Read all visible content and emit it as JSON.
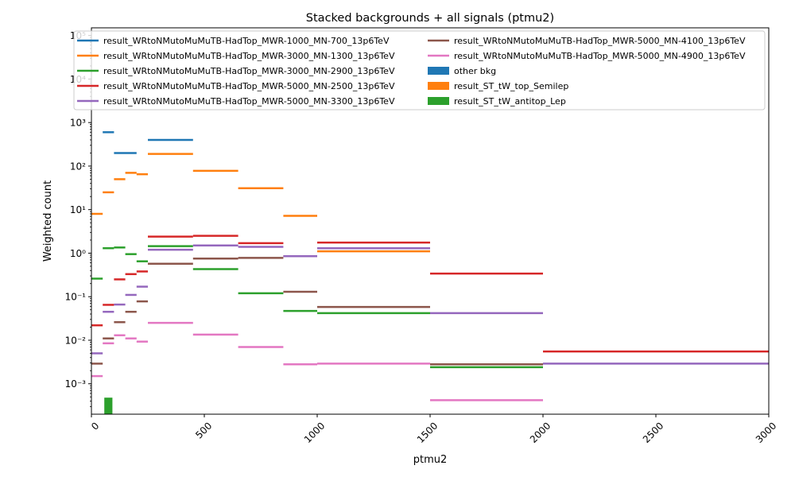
{
  "chart_data": {
    "type": "line",
    "title": "Stacked backgrounds + all signals (ptmu2)",
    "xlabel": "ptmu2",
    "ylabel": "Weighted count",
    "xlim": [
      0,
      3000
    ],
    "ylim": [
      0.0002,
      150000
    ],
    "yscale": "log",
    "grid": false,
    "legend_position": "top",
    "x_ticks": [
      0,
      500,
      1000,
      1500,
      2000,
      2500,
      3000
    ],
    "x_tick_labels": [
      "0",
      "500",
      "1000",
      "1500",
      "2000",
      "2500",
      "3000"
    ],
    "y_ticks": [
      0.001,
      0.01,
      0.1,
      1,
      10,
      100,
      1000,
      10000,
      100000
    ],
    "y_tick_labels": [
      "10⁻³",
      "10⁻²",
      "10⁻¹",
      "10⁰",
      "10¹",
      "10²",
      "10³",
      "10⁴",
      "10⁵"
    ],
    "series": [
      {
        "name": "result_WRtoNMutoMuMuTB-HadTop_MWR-1000_MN-700_13p6TeV",
        "kind": "step",
        "color": "#1f77b4",
        "bins": [
          [
            50,
            100,
            600
          ],
          [
            100,
            200,
            200
          ],
          [
            250,
            450,
            400
          ]
        ]
      },
      {
        "name": "result_WRtoNMutoMuMuTB-HadTop_MWR-3000_MN-1300_13p6TeV",
        "kind": "step",
        "color": "#ff7f0e",
        "bins": [
          [
            0,
            50,
            8
          ],
          [
            50,
            100,
            25
          ],
          [
            100,
            150,
            50
          ],
          [
            150,
            200,
            70
          ],
          [
            200,
            250,
            65
          ],
          [
            250,
            450,
            190
          ],
          [
            450,
            650,
            78
          ],
          [
            650,
            850,
            31
          ],
          [
            850,
            1000,
            7.2
          ],
          [
            1000,
            1500,
            1.1
          ]
        ]
      },
      {
        "name": "result_WRtoNMutoMuMuTB-HadTop_MWR-3000_MN-2900_13p6TeV",
        "kind": "step",
        "color": "#2ca02c",
        "bins": [
          [
            0,
            50,
            0.26
          ],
          [
            50,
            100,
            1.3
          ],
          [
            100,
            150,
            1.35
          ],
          [
            150,
            200,
            0.95
          ],
          [
            200,
            250,
            0.65
          ],
          [
            250,
            450,
            1.45
          ],
          [
            450,
            650,
            0.43
          ],
          [
            650,
            850,
            0.12
          ],
          [
            850,
            1000,
            0.047
          ],
          [
            1000,
            1500,
            0.042
          ],
          [
            1500,
            2000,
            0.0024
          ]
        ]
      },
      {
        "name": "result_WRtoNMutoMuMuTB-HadTop_MWR-5000_MN-2500_13p6TeV",
        "kind": "step",
        "color": "#d62728",
        "bins": [
          [
            0,
            50,
            0.022
          ],
          [
            50,
            100,
            0.065
          ],
          [
            100,
            150,
            0.25
          ],
          [
            150,
            200,
            0.33
          ],
          [
            200,
            250,
            0.38
          ],
          [
            250,
            450,
            2.4
          ],
          [
            450,
            650,
            2.5
          ],
          [
            650,
            850,
            1.7
          ],
          [
            850,
            1000,
            0.85
          ],
          [
            1000,
            1500,
            1.75
          ],
          [
            1500,
            2000,
            0.34
          ],
          [
            2000,
            3000,
            0.0055
          ]
        ]
      },
      {
        "name": "result_WRtoNMutoMuMuTB-HadTop_MWR-5000_MN-3300_13p6TeV",
        "kind": "step",
        "color": "#9467bd",
        "bins": [
          [
            0,
            50,
            0.005
          ],
          [
            50,
            100,
            0.045
          ],
          [
            100,
            150,
            0.066
          ],
          [
            150,
            200,
            0.11
          ],
          [
            200,
            250,
            0.17
          ],
          [
            250,
            450,
            1.2
          ],
          [
            450,
            650,
            1.5
          ],
          [
            650,
            850,
            1.4
          ],
          [
            850,
            1000,
            0.85
          ],
          [
            1000,
            1500,
            1.3
          ],
          [
            1500,
            2000,
            0.042
          ],
          [
            2000,
            3000,
            0.0029
          ]
        ]
      },
      {
        "name": "result_WRtoNMutoMuMuTB-HadTop_MWR-5000_MN-4100_13p6TeV",
        "kind": "step",
        "color": "#8c564b",
        "bins": [
          [
            0,
            50,
            0.0029
          ],
          [
            50,
            100,
            0.011
          ],
          [
            100,
            150,
            0.026
          ],
          [
            150,
            200,
            0.045
          ],
          [
            200,
            250,
            0.078
          ],
          [
            250,
            450,
            0.57
          ],
          [
            450,
            650,
            0.75
          ],
          [
            650,
            850,
            0.78
          ],
          [
            850,
            1000,
            0.13
          ],
          [
            1000,
            1500,
            0.058
          ],
          [
            1500,
            2000,
            0.0028
          ]
        ]
      },
      {
        "name": "result_WRtoNMutoMuMuTB-HadTop_MWR-5000_MN-4900_13p6TeV",
        "kind": "step",
        "color": "#e377c2",
        "bins": [
          [
            0,
            50,
            0.0015
          ],
          [
            50,
            100,
            0.0085
          ],
          [
            100,
            150,
            0.013
          ],
          [
            150,
            200,
            0.011
          ],
          [
            200,
            250,
            0.0093
          ],
          [
            250,
            450,
            0.025
          ],
          [
            450,
            650,
            0.0135
          ],
          [
            650,
            850,
            0.007
          ],
          [
            850,
            1000,
            0.0028
          ],
          [
            1000,
            1500,
            0.0029
          ],
          [
            1500,
            2000,
            0.00042
          ]
        ]
      },
      {
        "name": "other bkg",
        "kind": "bar",
        "color": "#1f77b4",
        "bins": []
      },
      {
        "name": "result_ST_tW_top_Semilep",
        "kind": "bar",
        "color": "#ff7f0e",
        "bins": []
      },
      {
        "name": "result_ST_tW_antitop_Lep",
        "kind": "bar",
        "color": "#2ca02c",
        "bins": [
          [
            50,
            100,
            0.00048
          ]
        ]
      }
    ]
  }
}
